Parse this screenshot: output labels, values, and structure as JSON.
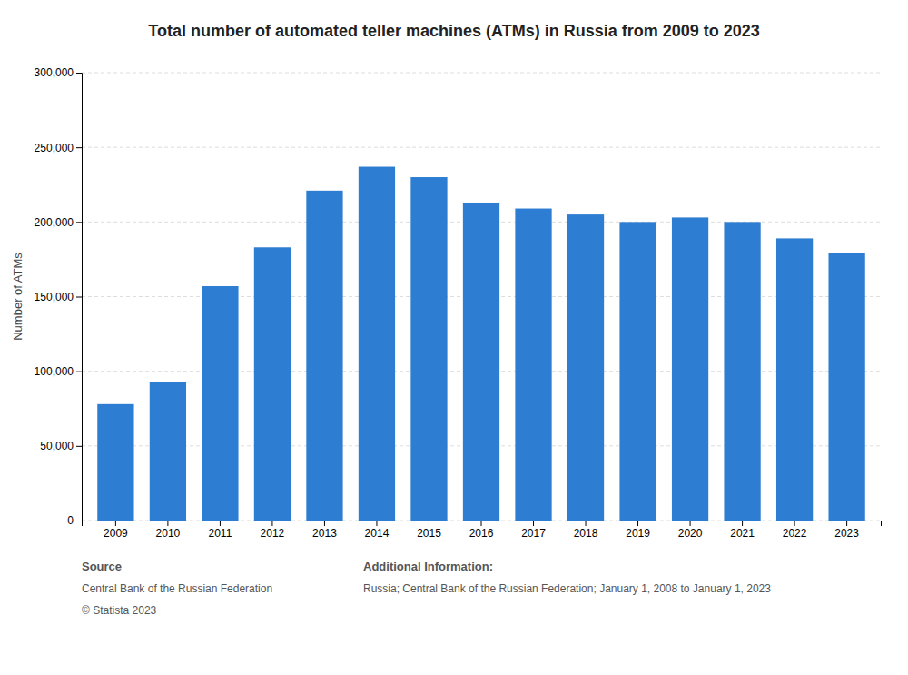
{
  "chart_data": {
    "type": "bar",
    "title": "Total number of automated teller machines (ATMs) in Russia from 2009 to 2023",
    "categories": [
      "2009",
      "2010",
      "2011",
      "2012",
      "2013",
      "2014",
      "2015",
      "2016",
      "2017",
      "2018",
      "2019",
      "2020",
      "2021",
      "2022",
      "2023"
    ],
    "values": [
      78000,
      93000,
      157000,
      183000,
      221000,
      237000,
      230000,
      213000,
      209000,
      205000,
      200000,
      203000,
      200000,
      189000,
      179000
    ],
    "color": "#2D7DD2",
    "ylabel": "Number of ATMs",
    "ylim": [
      0,
      300000
    ],
    "yticks": [
      0,
      {
        "value": 50000,
        "label": "50,000"
      },
      {
        "value": 100000,
        "label": "100,000"
      },
      {
        "value": 150000,
        "label": "150,000"
      },
      {
        "value": 200000,
        "label": "200,000"
      },
      {
        "value": 250000,
        "label": "250,000"
      },
      {
        "value": 300000,
        "label": "300,000"
      }
    ],
    "grid": true,
    "annotations": [
      "Source",
      "Central Bank of the Russian Federation",
      "© Statista 2023",
      "Additional Information:",
      "Russia; Central Bank of the Russian Federation; January 1, 2008 to January 1, 2023"
    ]
  }
}
